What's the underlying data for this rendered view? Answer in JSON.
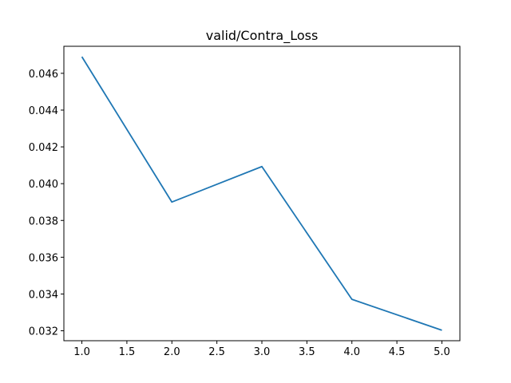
{
  "chart_data": {
    "type": "line",
    "title": "valid/Contra_Loss",
    "xlabel": "",
    "ylabel": "",
    "x": [
      1.0,
      2.0,
      3.0,
      4.0,
      5.0
    ],
    "series": [
      {
        "values": [
          0.0469,
          0.039,
          0.04093,
          0.03371,
          0.03203
        ],
        "color": "#1f77b4"
      }
    ],
    "xlim": [
      0.8,
      5.2
    ],
    "ylim": [
      0.03146,
      0.04747
    ],
    "xticks": [
      1.0,
      1.5,
      2.0,
      2.5,
      3.0,
      3.5,
      4.0,
      4.5,
      5.0
    ],
    "xtick_labels": [
      "1.0",
      "1.5",
      "2.0",
      "2.5",
      "3.0",
      "3.5",
      "4.0",
      "4.5",
      "5.0"
    ],
    "yticks": [
      0.032,
      0.034,
      0.036,
      0.038,
      0.04,
      0.042,
      0.044,
      0.046
    ],
    "ytick_labels": [
      "0.032",
      "0.034",
      "0.036",
      "0.038",
      "0.040",
      "0.042",
      "0.044",
      "0.046"
    ],
    "grid": false,
    "legend": "none"
  }
}
